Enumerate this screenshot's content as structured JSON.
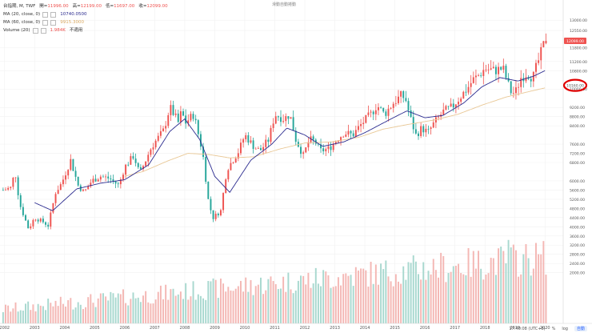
{
  "legend": {
    "symbol": "台指期",
    "interval": "M",
    "exchange": "TWF",
    "open_label": "開=",
    "open": "11996.00",
    "high_label": "高=",
    "high": "12199.00",
    "low_label": "低=",
    "low": "11697.00",
    "close_label": "收=",
    "close": "12099.00",
    "ma20_label": "MA (20, close, 0)",
    "ma20_value": "10740.0500",
    "ma60_label": "MA (60, close, 0)",
    "ma60_value": "9915.3000",
    "volume_label": "Volume (20)",
    "volume_value": "1.984K",
    "volume_extra": "不適用"
  },
  "top_note": "滑動自動捲動",
  "bottom_bar": {
    "time": "17:40:08 (UTC+8)",
    "pct": "%",
    "log": "log",
    "auto": "自動"
  },
  "colors": {
    "up": "#ef5350",
    "down": "#26a69a",
    "ma20": "#2b2b8f",
    "ma60": "#e9c896",
    "last_price_bg": "#ef5350",
    "highlight": "#e00000"
  },
  "chart_data": {
    "type": "candlestick",
    "title": "台指期, M, TWF",
    "xlabel": "",
    "ylabel": "",
    "ylim": [
      1500,
      13600
    ],
    "x_range": [
      2001.9,
      2020.5
    ],
    "x_ticks": [
      "2002",
      "2003",
      "2004",
      "2005",
      "2006",
      "2007",
      "2008",
      "2009",
      "2010",
      "2011",
      "2012",
      "2013",
      "2014",
      "2015",
      "2016",
      "2017",
      "2018",
      "2019",
      "2020"
    ],
    "y_ticks": [
      "13000.00",
      "12550.00",
      "11800.00",
      "11200.00",
      "10800.00",
      "10000.00",
      "9200.00",
      "8800.00",
      "8400.00",
      "7600.00",
      "7200.00",
      "6800.00",
      "6000.00",
      "5600.00",
      "5200.00",
      "4800.00",
      "4400.00",
      "4000.00",
      "3600.00",
      "3200.00",
      "2800.00",
      "2400.00",
      "2000.00"
    ],
    "last_price_label": "12099.00",
    "highlighted_level_label": "10160.00",
    "anchors": [
      [
        2001.95,
        5600
      ],
      [
        2002.2,
        5700
      ],
      [
        2002.35,
        6400
      ],
      [
        2002.5,
        5000
      ],
      [
        2002.8,
        3900
      ],
      [
        2003.0,
        4400
      ],
      [
        2003.3,
        4200
      ],
      [
        2003.45,
        4050
      ],
      [
        2003.7,
        5500
      ],
      [
        2003.9,
        5900
      ],
      [
        2004.2,
        6900
      ],
      [
        2004.45,
        5800
      ],
      [
        2004.65,
        5500
      ],
      [
        2004.9,
        6000
      ],
      [
        2005.2,
        6200
      ],
      [
        2005.5,
        6100
      ],
      [
        2005.8,
        5800
      ],
      [
        2006.0,
        6600
      ],
      [
        2006.3,
        7100
      ],
      [
        2006.5,
        6300
      ],
      [
        2006.9,
        7500
      ],
      [
        2007.3,
        8200
      ],
      [
        2007.5,
        9200
      ],
      [
        2007.6,
        9000
      ],
      [
        2007.8,
        8500
      ],
      [
        2007.9,
        9100
      ],
      [
        2008.0,
        8500
      ],
      [
        2008.3,
        8900
      ],
      [
        2008.6,
        7200
      ],
      [
        2008.8,
        5000
      ],
      [
        2008.95,
        4400
      ],
      [
        2009.2,
        4700
      ],
      [
        2009.4,
        6500
      ],
      [
        2009.6,
        6900
      ],
      [
        2009.8,
        7300
      ],
      [
        2010.0,
        8000
      ],
      [
        2010.3,
        7500
      ],
      [
        2010.5,
        7300
      ],
      [
        2010.8,
        7800
      ],
      [
        2011.0,
        8900
      ],
      [
        2011.3,
        8700
      ],
      [
        2011.5,
        8900
      ],
      [
        2011.7,
        7800
      ],
      [
        2011.95,
        7100
      ],
      [
        2012.15,
        7800
      ],
      [
        2012.35,
        7700
      ],
      [
        2012.5,
        7300
      ],
      [
        2012.8,
        7400
      ],
      [
        2013.0,
        7700
      ],
      [
        2013.3,
        8100
      ],
      [
        2013.6,
        8000
      ],
      [
        2013.9,
        8500
      ],
      [
        2014.2,
        8900
      ],
      [
        2014.4,
        9300
      ],
      [
        2014.65,
        8900
      ],
      [
        2014.95,
        9400
      ],
      [
        2015.2,
        9700
      ],
      [
        2015.35,
        9600
      ],
      [
        2015.5,
        8800
      ],
      [
        2015.7,
        8000
      ],
      [
        2015.9,
        8300
      ],
      [
        2016.1,
        8100
      ],
      [
        2016.3,
        8500
      ],
      [
        2016.6,
        9000
      ],
      [
        2016.9,
        9200
      ],
      [
        2017.2,
        9700
      ],
      [
        2017.4,
        10000
      ],
      [
        2017.6,
        10400
      ],
      [
        2017.8,
        10600
      ],
      [
        2018.0,
        10900
      ],
      [
        2018.3,
        10800
      ],
      [
        2018.6,
        10900
      ],
      [
        2018.85,
        9900
      ],
      [
        2019.0,
        9800
      ],
      [
        2019.2,
        10500
      ],
      [
        2019.4,
        10700
      ],
      [
        2019.6,
        10500
      ],
      [
        2019.85,
        11500
      ],
      [
        2020.0,
        12099
      ]
    ],
    "ma20_anchors": [
      [
        2003.0,
        5050
      ],
      [
        2003.6,
        4700
      ],
      [
        2004.4,
        5650
      ],
      [
        2005.2,
        5900
      ],
      [
        2006.0,
        6050
      ],
      [
        2006.8,
        6700
      ],
      [
        2007.5,
        8150
      ],
      [
        2008.0,
        8700
      ],
      [
        2008.5,
        7800
      ],
      [
        2009.0,
        6200
      ],
      [
        2009.5,
        5500
      ],
      [
        2010.2,
        6900
      ],
      [
        2010.9,
        7600
      ],
      [
        2011.4,
        8300
      ],
      [
        2012.0,
        8000
      ],
      [
        2012.6,
        7500
      ],
      [
        2013.3,
        7700
      ],
      [
        2014.0,
        8100
      ],
      [
        2014.8,
        8650
      ],
      [
        2015.4,
        9050
      ],
      [
        2016.0,
        8750
      ],
      [
        2016.6,
        8850
      ],
      [
        2017.3,
        9400
      ],
      [
        2017.9,
        10100
      ],
      [
        2018.5,
        10500
      ],
      [
        2019.1,
        10350
      ],
      [
        2019.6,
        10550
      ],
      [
        2020.0,
        10800
      ]
    ],
    "ma60_anchors": [
      [
        2006.0,
        6200
      ],
      [
        2006.6,
        6400
      ],
      [
        2007.4,
        6850
      ],
      [
        2008.1,
        7200
      ],
      [
        2008.8,
        7150
      ],
      [
        2009.5,
        7000
      ],
      [
        2010.3,
        7050
      ],
      [
        2011.2,
        7400
      ],
      [
        2012.0,
        7650
      ],
      [
        2012.9,
        7700
      ],
      [
        2013.8,
        7900
      ],
      [
        2014.6,
        8250
      ],
      [
        2015.4,
        8450
      ],
      [
        2016.3,
        8650
      ],
      [
        2017.1,
        8900
      ],
      [
        2017.9,
        9300
      ],
      [
        2018.7,
        9650
      ],
      [
        2019.5,
        9900
      ],
      [
        2020.0,
        10050
      ]
    ],
    "volume_range": [
      0,
      3000
    ]
  }
}
